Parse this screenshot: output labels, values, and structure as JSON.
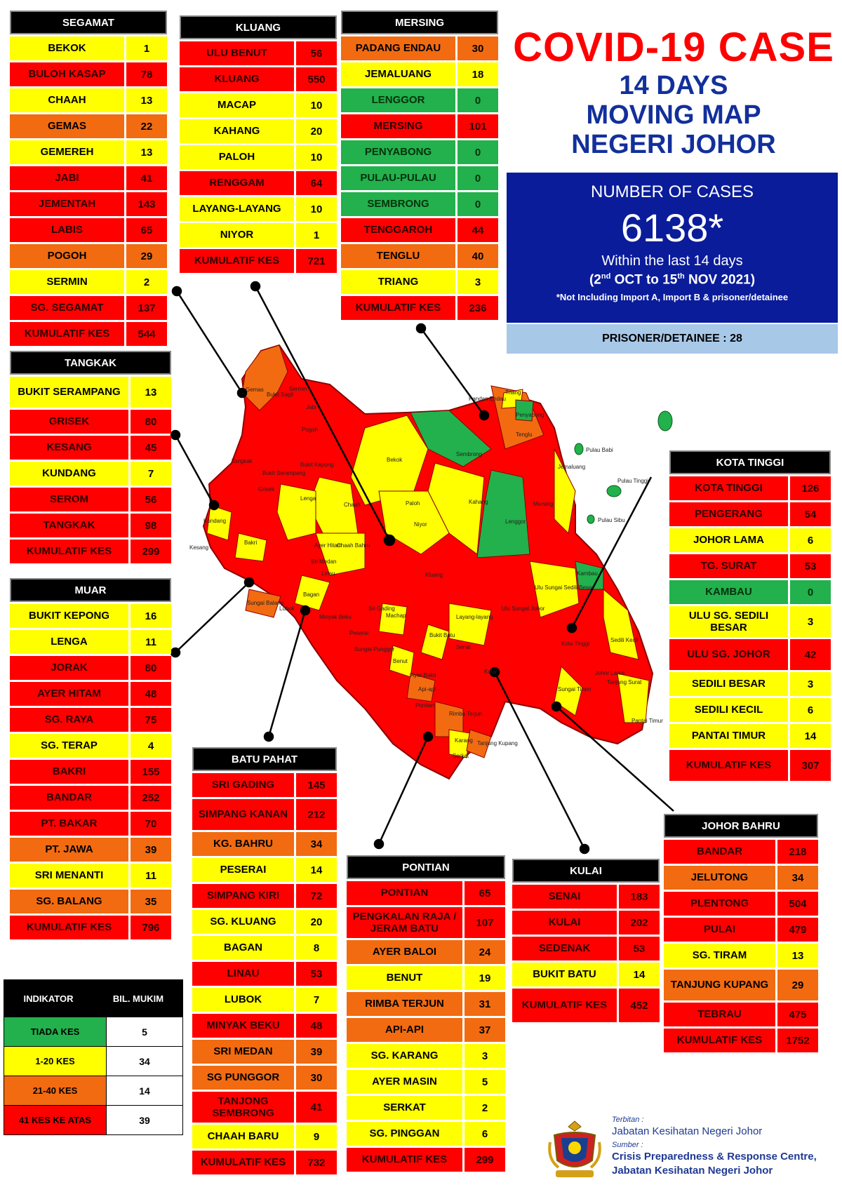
{
  "title": {
    "main": "COVID-19 CASE",
    "line1": "14 DAYS",
    "line2": "MOVING MAP",
    "line3": "NEGERI JOHOR"
  },
  "summary": {
    "label": "NUMBER OF CASES",
    "total": "6138*",
    "within": "Within the last 14 days",
    "range_a": "(2",
    "range_b": "nd",
    "range_c": " OCT to 15",
    "range_d": "th",
    "range_e": " NOV 2021)",
    "note": "*Not Including Import A, Import B & prisoner/detainee",
    "prisoner": "PRISONER/DETAINEE : 28"
  },
  "colors": {
    "none": "#22b14c",
    "low": "#ffff00",
    "mid": "#f26b11",
    "high": "#ff0000",
    "header": "#000000",
    "summary_bg": "#0a1c9a",
    "prisoner_bg": "#a8c8e8",
    "title_red": "#ff0000",
    "title_blue": "#12309b"
  },
  "districts": {
    "segamat": {
      "name": "SEGAMAT",
      "rows": [
        {
          "name": "BEKOK",
          "value": "1",
          "level": "yellow"
        },
        {
          "name": "BULOH KASAP",
          "value": "78",
          "level": "red"
        },
        {
          "name": "CHAAH",
          "value": "13",
          "level": "yellow"
        },
        {
          "name": "GEMAS",
          "value": "22",
          "level": "orange"
        },
        {
          "name": "GEMEREH",
          "value": "13",
          "level": "yellow"
        },
        {
          "name": "JABI",
          "value": "41",
          "level": "red"
        },
        {
          "name": "JEMENTAH",
          "value": "143",
          "level": "red"
        },
        {
          "name": "LABIS",
          "value": "65",
          "level": "red"
        },
        {
          "name": "POGOH",
          "value": "29",
          "level": "orange"
        },
        {
          "name": "SERMIN",
          "value": "2",
          "level": "yellow"
        },
        {
          "name": "SG. SEGAMAT",
          "value": "137",
          "level": "red"
        },
        {
          "name": "KUMULATIF KES",
          "value": "544",
          "level": "total"
        }
      ]
    },
    "kluang": {
      "name": "KLUANG",
      "rows": [
        {
          "name": "ULU BENUT",
          "value": "56",
          "level": "red"
        },
        {
          "name": "KLUANG",
          "value": "550",
          "level": "red"
        },
        {
          "name": "MACAP",
          "value": "10",
          "level": "yellow"
        },
        {
          "name": "KAHANG",
          "value": "20",
          "level": "yellow"
        },
        {
          "name": "PALOH",
          "value": "10",
          "level": "yellow"
        },
        {
          "name": "RENGGAM",
          "value": "64",
          "level": "red"
        },
        {
          "name": "LAYANG-LAYANG",
          "value": "10",
          "level": "yellow"
        },
        {
          "name": "NIYOR",
          "value": "1",
          "level": "yellow"
        },
        {
          "name": "KUMULATIF KES",
          "value": "721",
          "level": "total"
        }
      ]
    },
    "mersing": {
      "name": "MERSING",
      "rows": [
        {
          "name": "PADANG ENDAU",
          "value": "30",
          "level": "orange"
        },
        {
          "name": "JEMALUANG",
          "value": "18",
          "level": "yellow"
        },
        {
          "name": "LENGGOR",
          "value": "0",
          "level": "green"
        },
        {
          "name": "MERSING",
          "value": "101",
          "level": "red"
        },
        {
          "name": "PENYABONG",
          "value": "0",
          "level": "green"
        },
        {
          "name": "PULAU-PULAU",
          "value": "0",
          "level": "green"
        },
        {
          "name": "SEMBRONG",
          "value": "0",
          "level": "green"
        },
        {
          "name": "TENGGAROH",
          "value": "44",
          "level": "red"
        },
        {
          "name": "TENGLU",
          "value": "40",
          "level": "orange"
        },
        {
          "name": "TRIANG",
          "value": "3",
          "level": "yellow"
        },
        {
          "name": "KUMULATIF KES",
          "value": "236",
          "level": "total"
        }
      ]
    },
    "tangkak": {
      "name": "TANGKAK",
      "rows": [
        {
          "name": "BUKIT SERAMPANG",
          "value": "13",
          "level": "yellow",
          "tall": true
        },
        {
          "name": "GRISEK",
          "value": "80",
          "level": "red"
        },
        {
          "name": "KESANG",
          "value": "45",
          "level": "red"
        },
        {
          "name": "KUNDANG",
          "value": "7",
          "level": "yellow"
        },
        {
          "name": "SEROM",
          "value": "56",
          "level": "red"
        },
        {
          "name": "TANGKAK",
          "value": "98",
          "level": "red"
        },
        {
          "name": "KUMULATIF KES",
          "value": "299",
          "level": "total"
        }
      ]
    },
    "muar": {
      "name": "MUAR",
      "rows": [
        {
          "name": "BUKIT KEPONG",
          "value": "16",
          "level": "yellow"
        },
        {
          "name": "LENGA",
          "value": "11",
          "level": "yellow"
        },
        {
          "name": "JORAK",
          "value": "80",
          "level": "red"
        },
        {
          "name": "AYER HITAM",
          "value": "48",
          "level": "red"
        },
        {
          "name": "SG. RAYA",
          "value": "75",
          "level": "red"
        },
        {
          "name": "SG. TERAP",
          "value": "4",
          "level": "yellow"
        },
        {
          "name": "BAKRI",
          "value": "155",
          "level": "red"
        },
        {
          "name": "BANDAR",
          "value": "252",
          "level": "red"
        },
        {
          "name": "PT. BAKAR",
          "value": "70",
          "level": "red"
        },
        {
          "name": "PT. JAWA",
          "value": "39",
          "level": "orange"
        },
        {
          "name": "SRI MENANTI",
          "value": "11",
          "level": "yellow"
        },
        {
          "name": "SG. BALANG",
          "value": "35",
          "level": "orange"
        },
        {
          "name": "KUMULATIF KES",
          "value": "796",
          "level": "total"
        }
      ]
    },
    "kota_tinggi": {
      "name": "KOTA TINGGI",
      "rows": [
        {
          "name": "KOTA TINGGI",
          "value": "126",
          "level": "red"
        },
        {
          "name": "PENGERANG",
          "value": "54",
          "level": "red"
        },
        {
          "name": "JOHOR LAMA",
          "value": "6",
          "level": "yellow"
        },
        {
          "name": "TG. SURAT",
          "value": "53",
          "level": "red"
        },
        {
          "name": "KAMBAU",
          "value": "0",
          "level": "green"
        },
        {
          "name": "ULU SG. SEDILI BESAR",
          "value": "3",
          "level": "yellow",
          "tall": true
        },
        {
          "name": "ULU  SG. JOHOR",
          "value": "42",
          "level": "red",
          "tall": true
        },
        {
          "name": "SEDILI BESAR",
          "value": "3",
          "level": "yellow"
        },
        {
          "name": "SEDILI KECIL",
          "value": "6",
          "level": "yellow"
        },
        {
          "name": "PANTAI TIMUR",
          "value": "14",
          "level": "yellow"
        },
        {
          "name": "KUMULATIF KES",
          "value": "307",
          "level": "total",
          "tall": true
        }
      ]
    },
    "batu_pahat": {
      "name": "BATU PAHAT",
      "rows": [
        {
          "name": "SRI GADING",
          "value": "145",
          "level": "red"
        },
        {
          "name": "SIMPANG KANAN",
          "value": "212",
          "level": "red",
          "tall": true
        },
        {
          "name": "KG. BAHRU",
          "value": "34",
          "level": "orange"
        },
        {
          "name": "PESERAI",
          "value": "14",
          "level": "yellow"
        },
        {
          "name": "SIMPANG KIRI",
          "value": "72",
          "level": "red"
        },
        {
          "name": "SG. KLUANG",
          "value": "20",
          "level": "yellow"
        },
        {
          "name": "BAGAN",
          "value": "8",
          "level": "yellow"
        },
        {
          "name": "LINAU",
          "value": "53",
          "level": "red"
        },
        {
          "name": "LUBOK",
          "value": "7",
          "level": "yellow"
        },
        {
          "name": "MINYAK BEKU",
          "value": "48",
          "level": "red"
        },
        {
          "name": "SRI MEDAN",
          "value": "39",
          "level": "orange"
        },
        {
          "name": "SG PUNGGOR",
          "value": "30",
          "level": "orange"
        },
        {
          "name": "TANJONG SEMBRONG",
          "value": "41",
          "level": "red",
          "tall": true
        },
        {
          "name": "CHAAH BARU",
          "value": "9",
          "level": "yellow"
        },
        {
          "name": "KUMULATIF KES",
          "value": "732",
          "level": "total"
        }
      ]
    },
    "pontian": {
      "name": "PONTIAN",
      "rows": [
        {
          "name": "PONTIAN",
          "value": "65",
          "level": "red"
        },
        {
          "name": "PENGKALAN RAJA / JERAM BATU",
          "value": "107",
          "level": "red",
          "tall": true
        },
        {
          "name": "AYER BALOI",
          "value": "24",
          "level": "orange"
        },
        {
          "name": "BENUT",
          "value": "19",
          "level": "yellow"
        },
        {
          "name": "RIMBA TERJUN",
          "value": "31",
          "level": "orange"
        },
        {
          "name": "API-API",
          "value": "37",
          "level": "orange"
        },
        {
          "name": "SG. KARANG",
          "value": "3",
          "level": "yellow"
        },
        {
          "name": "AYER MASIN",
          "value": "5",
          "level": "yellow"
        },
        {
          "name": "SERKAT",
          "value": "2",
          "level": "yellow"
        },
        {
          "name": "SG. PINGGAN",
          "value": "6",
          "level": "yellow"
        },
        {
          "name": "KUMULATIF KES",
          "value": "299",
          "level": "total"
        }
      ]
    },
    "kulai": {
      "name": "KULAI",
      "rows": [
        {
          "name": "SENAI",
          "value": "183",
          "level": "red"
        },
        {
          "name": "KULAI",
          "value": "202",
          "level": "red"
        },
        {
          "name": "SEDENAK",
          "value": "53",
          "level": "red"
        },
        {
          "name": "BUKIT BATU",
          "value": "14",
          "level": "yellow"
        },
        {
          "name": "KUMULATIF KES",
          "value": "452",
          "level": "total",
          "tall2": true
        }
      ]
    },
    "johor_bahru": {
      "name": "JOHOR BAHRU",
      "rows": [
        {
          "name": "BANDAR",
          "value": "218",
          "level": "red"
        },
        {
          "name": "JELUTONG",
          "value": "34",
          "level": "orange"
        },
        {
          "name": "PLENTONG",
          "value": "504",
          "level": "red"
        },
        {
          "name": "PULAI",
          "value": "479",
          "level": "red"
        },
        {
          "name": "SG. TIRAM",
          "value": "13",
          "level": "yellow"
        },
        {
          "name": "TANJUNG KUPANG",
          "value": "29",
          "level": "orange",
          "tall": true
        },
        {
          "name": "TEBRAU",
          "value": "475",
          "level": "red"
        },
        {
          "name": "KUMULATIF KES",
          "value": "1752",
          "level": "total"
        }
      ]
    }
  },
  "indicator": {
    "header_left": "INDIKATOR",
    "header_right": "BIL. MUKIM",
    "rows": [
      {
        "label": "TIADA KES",
        "count": "5",
        "level": "green"
      },
      {
        "label": "1-20 KES",
        "count": "34",
        "level": "yellow"
      },
      {
        "label": "21-40 KES",
        "count": "14",
        "level": "orange"
      },
      {
        "label": "41 KES KE ATAS",
        "count": "39",
        "level": "red"
      }
    ]
  },
  "footer": {
    "published_by_label": "Terbitan :",
    "publisher": "Jabatan Kesihatan Negeri Johor",
    "source_label": "Sumber :",
    "source_line1": "Crisis Preparedness & Response Centre,",
    "source_line2": "Jabatan Kesihatan Negeri Johor"
  },
  "map_labels": [
    "Gemas",
    "Bukit Sagil",
    "Sermin",
    "Jabi",
    "Pogoh",
    "Tangkak",
    "Bukit Serampang",
    "Bukit Kepong",
    "Grisek",
    "Lenga",
    "Chaah",
    "Bekok",
    "Sembrong",
    "Paloh",
    "Niyor",
    "Kahang",
    "Lenggor",
    "Mersing",
    "Jemaluang",
    "Penyabong",
    "Triang",
    "Tenglu",
    "Pandan Endau",
    "Pulau Babi",
    "Pulau Tinggi",
    "Pulau Sibu",
    "Kesang",
    "Kundang",
    "Sri Medan",
    "Chaah Bahru",
    "Linau",
    "Machap",
    "Kluang",
    "Layang-layang",
    "Kambau",
    "Ulu Sungai Sedili Besar",
    "Ulu Sungai Johor",
    "Sedili Besar",
    "Kota Tinggi",
    "Johor Lama",
    "Sedili Kecil",
    "Pantai Timur",
    "Tanjung Surat",
    "Sungai Tiram",
    "Bukit Batu",
    "Senai",
    "Kulai",
    "Ayer Baloi",
    "Pontian",
    "Benut",
    "Api-api",
    "Rimba Terjun",
    "Serkat",
    "Karang",
    "Tanjung Kupang",
    "Bakri",
    "Sungai Balang",
    "Lubok",
    "Peserai",
    "Ayer Hitam",
    "Sri Gading",
    "Sungai Punggor",
    "Bagan",
    "Minyak Beku"
  ]
}
